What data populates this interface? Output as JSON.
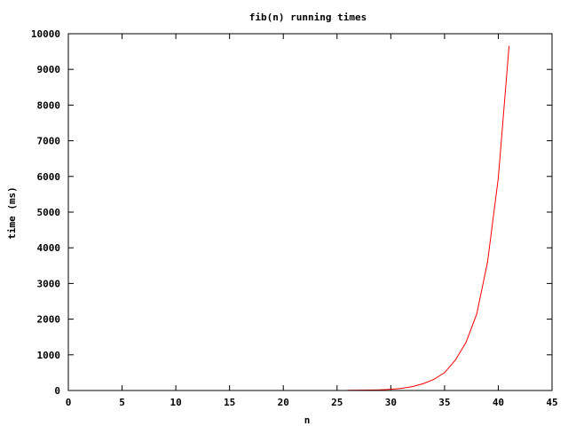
{
  "chart_data": {
    "type": "line",
    "title": "fib(n) running times",
    "xlabel": "n",
    "ylabel": "time (ms)",
    "xlim": [
      0,
      45
    ],
    "ylim": [
      0,
      10000
    ],
    "xticks": [
      "0",
      "5",
      "10",
      "15",
      "20",
      "25",
      "30",
      "35",
      "40",
      "45"
    ],
    "yticks": [
      "0",
      "1000",
      "2000",
      "3000",
      "4000",
      "5000",
      "6000",
      "7000",
      "8000",
      "9000",
      "10000"
    ],
    "grid": false,
    "legend": "none",
    "series": [
      {
        "color": "#ff0000",
        "x": [
          26,
          27,
          28,
          29,
          30,
          31,
          32,
          33,
          34,
          35,
          36,
          37,
          38,
          39,
          40,
          41
        ],
        "y": [
          5,
          8,
          12,
          20,
          35,
          60,
          110,
          190,
          310,
          500,
          850,
          1350,
          2150,
          3600,
          5950,
          9650
        ]
      }
    ]
  }
}
